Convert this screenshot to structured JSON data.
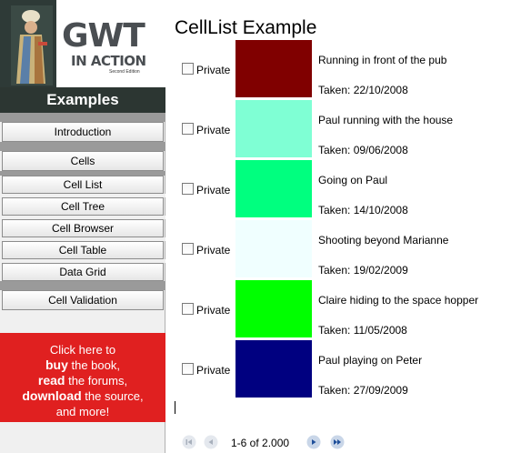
{
  "logo": {
    "title": "GWT",
    "subtitle": "IN ACTION",
    "edition": "Second Edition"
  },
  "sidebar": {
    "header": "Examples",
    "items": [
      {
        "label": "Introduction"
      },
      {
        "label": "Cells"
      },
      {
        "label": "Cell List"
      },
      {
        "label": "Cell Tree"
      },
      {
        "label": "Cell Browser"
      },
      {
        "label": "Cell Table"
      },
      {
        "label": "Data Grid"
      },
      {
        "label": "Cell Validation"
      }
    ],
    "promo": {
      "line1": "Click here to",
      "buy": "buy",
      "buy_rest": " the book,",
      "read": "read",
      "read_rest": " the forums,",
      "download": "download",
      "download_rest": " the source,",
      "line5": "and more!"
    }
  },
  "main": {
    "title": "CellList Example",
    "private_label": "Private",
    "rows": [
      {
        "color": "#800000",
        "desc": "Running in front of the pub",
        "taken": "Taken: 22/10/2008"
      },
      {
        "color": "#7fffd4",
        "desc": "Paul running with the house",
        "taken": "Taken: 09/06/2008"
      },
      {
        "color": "#00ff7f",
        "desc": "Going on Paul",
        "taken": "Taken: 14/10/2008"
      },
      {
        "color": "#f0ffff",
        "desc": "Shooting beyond Marianne",
        "taken": "Taken: 19/02/2009"
      },
      {
        "color": "#00ff00",
        "desc": "Claire hiding to the space hopper",
        "taken": "Taken: 11/05/2008"
      },
      {
        "color": "#000080",
        "desc": "Paul playing on Peter",
        "taken": "Taken: 27/09/2009"
      }
    ],
    "pager": {
      "label": "1-6 of 2.000",
      "first_icon": "first-page-icon",
      "prev_icon": "prev-page-icon",
      "next_icon": "next-page-icon",
      "last_icon": "last-page-icon"
    }
  }
}
